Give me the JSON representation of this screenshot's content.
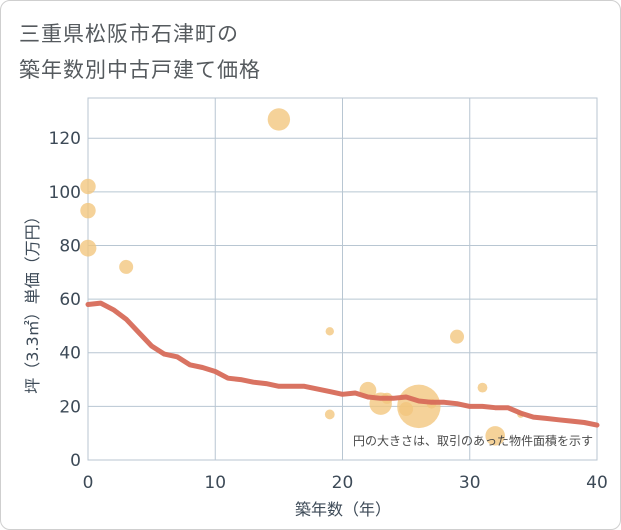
{
  "chart_data": {
    "type": "scatter",
    "title_lines": [
      "三重県松阪市石津町の",
      "築年数別中古戸建て価格"
    ],
    "xlabel": "築年数（年）",
    "ylabel": "坪（3.3㎡）単価（万円）",
    "xlim": [
      0,
      40
    ],
    "ylim": [
      0,
      135
    ],
    "x_ticks": [
      0,
      10,
      20,
      30,
      40
    ],
    "y_ticks": [
      0,
      20,
      40,
      60,
      80,
      100,
      120
    ],
    "note": "円の大きさは、取引のあった物件面積を示す",
    "bubble_color": "#f2c57c",
    "line_color": "#d76b5a",
    "points": [
      {
        "x": 0,
        "y": 102,
        "size": 1.1
      },
      {
        "x": 0,
        "y": 93,
        "size": 1.1
      },
      {
        "x": 0,
        "y": 79,
        "size": 1.2
      },
      {
        "x": 3,
        "y": 72,
        "size": 1.0
      },
      {
        "x": 15,
        "y": 127,
        "size": 1.6
      },
      {
        "x": 19,
        "y": 48,
        "size": 0.6
      },
      {
        "x": 19,
        "y": 17,
        "size": 0.7
      },
      {
        "x": 22,
        "y": 26,
        "size": 1.2
      },
      {
        "x": 23,
        "y": 21,
        "size": 1.6
      },
      {
        "x": 23.5,
        "y": 23,
        "size": 0.8
      },
      {
        "x": 25,
        "y": 19,
        "size": 1.0
      },
      {
        "x": 26,
        "y": 20,
        "size": 3.1
      },
      {
        "x": 27,
        "y": 21,
        "size": 0.7
      },
      {
        "x": 29,
        "y": 46,
        "size": 1.0
      },
      {
        "x": 31,
        "y": 27,
        "size": 0.7
      },
      {
        "x": 32,
        "y": 9,
        "size": 1.4
      },
      {
        "x": 34,
        "y": 17,
        "size": 0.5
      }
    ],
    "trend": {
      "x": [
        0,
        1,
        2,
        3,
        4,
        5,
        6,
        7,
        8,
        9,
        10,
        11,
        12,
        13,
        14,
        15,
        16,
        17,
        18,
        19,
        20,
        21,
        22,
        23,
        24,
        25,
        26,
        27,
        28,
        29,
        30,
        31,
        32,
        33,
        34,
        35,
        36,
        37,
        38,
        39,
        40
      ],
      "y": [
        58,
        58.5,
        56,
        52.5,
        47.5,
        42.5,
        39.5,
        38.5,
        35.5,
        34.5,
        33,
        30.5,
        30,
        29,
        28.5,
        27.5,
        27.5,
        27.5,
        26.5,
        25.5,
        24.5,
        25,
        23.5,
        23,
        23,
        23.5,
        22,
        21.5,
        21.5,
        21,
        20,
        20,
        19.5,
        19.5,
        17.5,
        16,
        15.5,
        15,
        14.5,
        14,
        13
      ]
    }
  }
}
